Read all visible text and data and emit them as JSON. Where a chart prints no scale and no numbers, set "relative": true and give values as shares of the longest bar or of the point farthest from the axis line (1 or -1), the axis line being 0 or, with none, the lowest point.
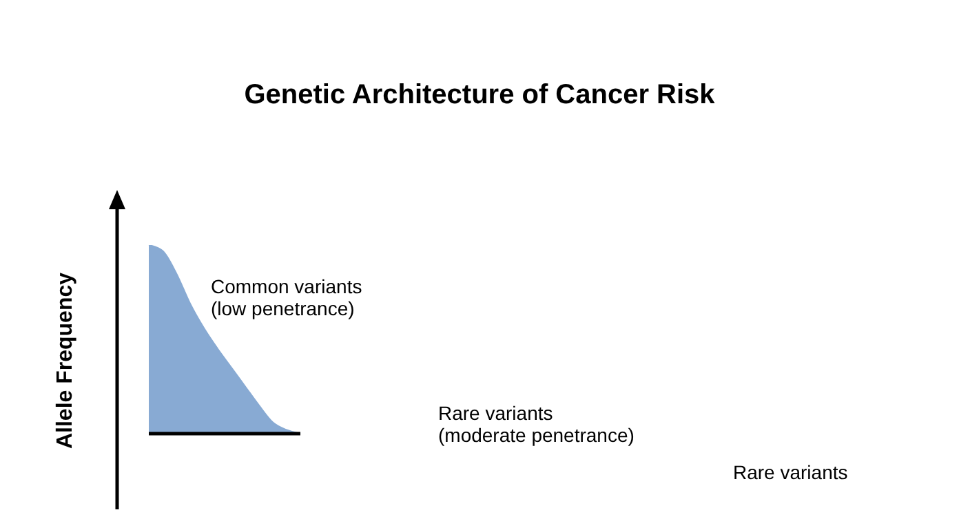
{
  "chart_data": {
    "type": "area",
    "title": "Genetic Architecture of Cancer Risk",
    "ylabel": "Allele Frequency",
    "relative": true,
    "color": "#88aad3",
    "categories": [
      null,
      null,
      null,
      null,
      null,
      null,
      null,
      null,
      null,
      null,
      null,
      null
    ],
    "values": [
      1,
      0.97,
      0.85,
      0.69,
      0.56,
      0.45,
      0.35,
      0.25,
      0.15,
      0.06,
      0.02,
      0
    ],
    "annotations": [
      "Common variants\n(low penetrance)",
      "Rare variants\n(moderate penetrance)",
      "Rare variants"
    ]
  }
}
